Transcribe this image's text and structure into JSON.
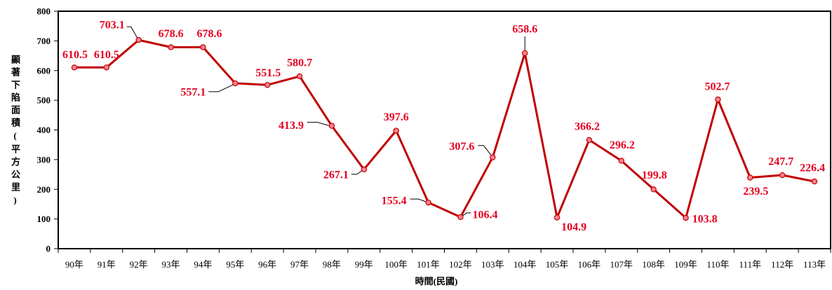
{
  "chart_data": {
    "type": "line",
    "xlabel": "時間(民國)",
    "ylabel": "顯著下陷面積(平方公里)",
    "categories": [
      "90年",
      "91年",
      "92年",
      "93年",
      "94年",
      "95年",
      "96年",
      "97年",
      "98年",
      "99年",
      "100年",
      "101年",
      "102年",
      "103年",
      "104年",
      "105年",
      "106年",
      "107年",
      "108年",
      "109年",
      "110年",
      "111年",
      "112年",
      "113年"
    ],
    "series": [
      {
        "values": [
          610.5,
          610.5,
          703.1,
          678.6,
          678.6,
          557.1,
          551.5,
          580.7,
          413.9,
          267.1,
          397.6,
          155.4,
          106.4,
          307.6,
          658.6,
          104.9,
          366.2,
          296.2,
          199.8,
          103.8,
          502.7,
          239.5,
          247.7,
          226.4
        ]
      }
    ],
    "ylim": [
      0,
      800
    ],
    "yticks": [
      0,
      100,
      200,
      300,
      400,
      500,
      600,
      700,
      800
    ],
    "grid": false,
    "legend": false,
    "data_labels": true,
    "colors": {
      "line": "#c00000",
      "marker_fill": "#ff8090",
      "marker_edge": "#c00000",
      "data_label": "#e60020",
      "axis": "#000000",
      "leader": "#000000"
    }
  }
}
